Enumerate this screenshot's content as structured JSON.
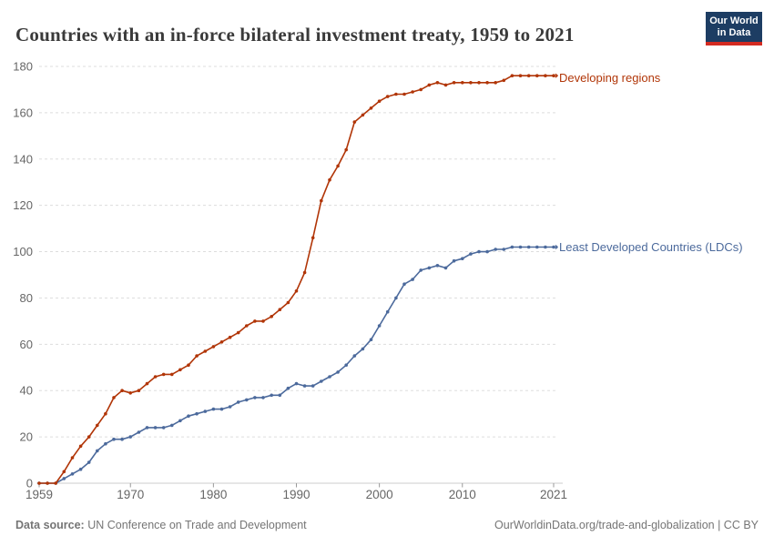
{
  "header": {
    "title": "Countries with an in-force bilateral investment treaty, 1959 to 2021"
  },
  "logo": {
    "line1": "Our World",
    "line2": "in Data",
    "bg_color": "#1d3d63",
    "stripe_color": "#d42b21"
  },
  "chart_data": {
    "type": "line",
    "title": "Countries with an in-force bilateral investment treaty, 1959 to 2021",
    "xlabel": "",
    "ylabel": "",
    "ylim": [
      0,
      180
    ],
    "yticks": [
      0,
      20,
      40,
      60,
      80,
      100,
      120,
      140,
      160,
      180
    ],
    "xticks": [
      1959,
      1970,
      1980,
      1990,
      2000,
      2010,
      2021
    ],
    "grid": "horizontal-dashed",
    "legend_position": "end-of-line-labels",
    "years": [
      1959,
      1960,
      1961,
      1962,
      1963,
      1964,
      1965,
      1966,
      1967,
      1968,
      1969,
      1970,
      1971,
      1972,
      1973,
      1974,
      1975,
      1976,
      1977,
      1978,
      1979,
      1980,
      1981,
      1982,
      1983,
      1984,
      1985,
      1986,
      1987,
      1988,
      1989,
      1990,
      1991,
      1992,
      1993,
      1994,
      1995,
      1996,
      1997,
      1998,
      1999,
      2000,
      2001,
      2002,
      2003,
      2004,
      2005,
      2006,
      2007,
      2008,
      2009,
      2010,
      2011,
      2012,
      2013,
      2014,
      2015,
      2016,
      2017,
      2018,
      2019,
      2020,
      2021
    ],
    "series": [
      {
        "name": "Developing regions",
        "color": "#b13507",
        "values": [
          0,
          0,
          0,
          5,
          11,
          16,
          20,
          25,
          30,
          37,
          40,
          39,
          40,
          43,
          46,
          47,
          47,
          49,
          51,
          55,
          57,
          59,
          61,
          63,
          65,
          68,
          70,
          70,
          72,
          75,
          78,
          83,
          91,
          106,
          122,
          131,
          137,
          144,
          156,
          159,
          162,
          165,
          167,
          168,
          168,
          169,
          170,
          172,
          173,
          172,
          173,
          173,
          173,
          173,
          173,
          173,
          174,
          176,
          176,
          176,
          176,
          176,
          176
        ]
      },
      {
        "name": "Least Developed Countries (LDCs)",
        "color": "#4c6a9c",
        "values": [
          0,
          0,
          0,
          2,
          4,
          6,
          9,
          14,
          17,
          19,
          19,
          20,
          22,
          24,
          24,
          24,
          25,
          27,
          29,
          30,
          31,
          32,
          32,
          33,
          35,
          36,
          37,
          37,
          38,
          38,
          41,
          43,
          42,
          42,
          44,
          46,
          48,
          51,
          55,
          58,
          62,
          68,
          74,
          80,
          86,
          88,
          92,
          93,
          94,
          93,
          96,
          97,
          99,
          100,
          100,
          101,
          101,
          102,
          102,
          102,
          102,
          102,
          102
        ]
      }
    ]
  },
  "footer": {
    "source_label": "Data source:",
    "source_value": " UN Conference on Trade and Development",
    "credit": "OurWorldinData.org/trade-and-globalization | CC BY"
  },
  "colors": {
    "grid": "#dddddd",
    "baseline": "#cccccc",
    "tick": "#999999",
    "axis_text": "#666666"
  }
}
